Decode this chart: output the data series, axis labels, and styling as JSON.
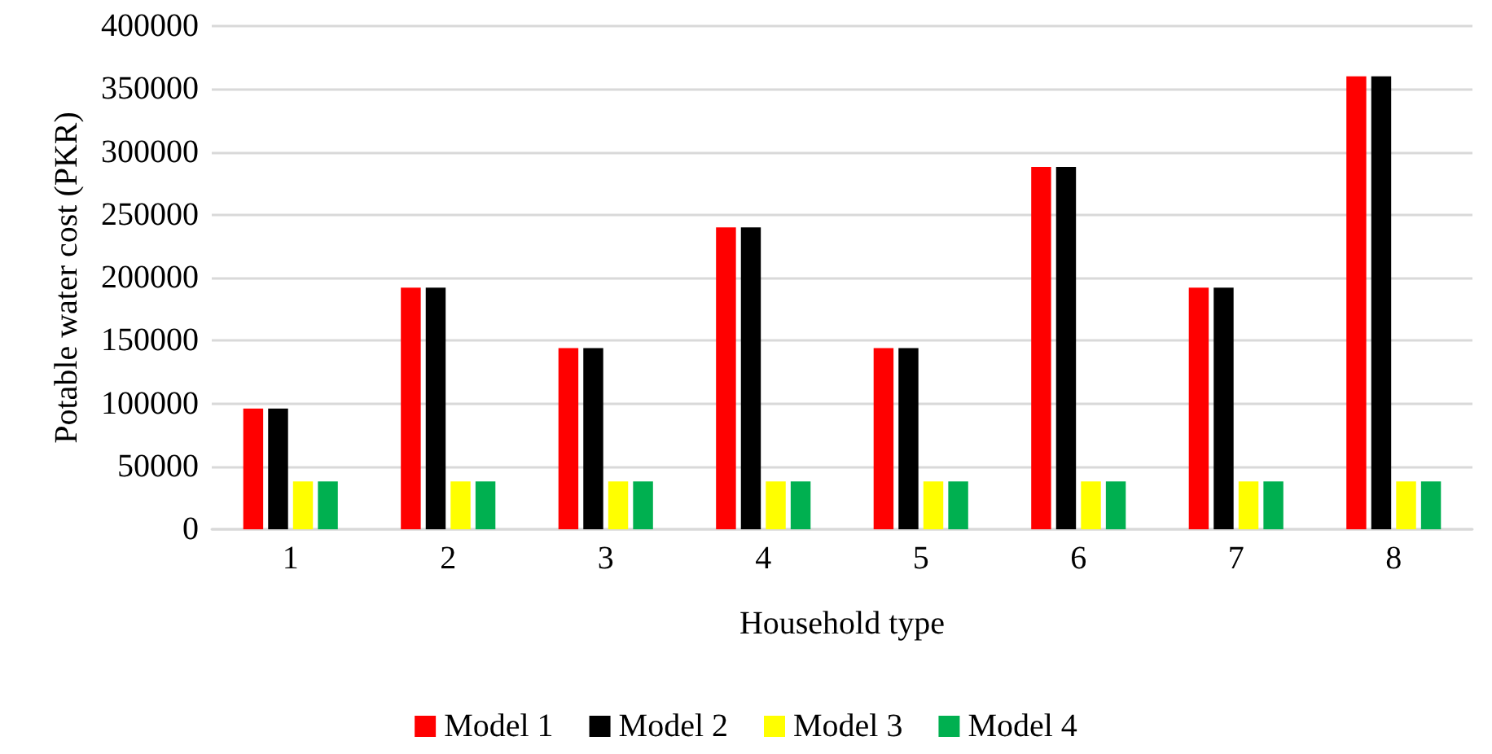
{
  "chart_data": {
    "type": "bar",
    "xlabel": "Household type",
    "ylabel": "Potable water cost (PKR)",
    "categories": [
      "1",
      "2",
      "3",
      "4",
      "5",
      "6",
      "7",
      "8"
    ],
    "series": [
      {
        "name": "Model 1",
        "color": "#ff0000",
        "values": [
          96000,
          192000,
          144000,
          240000,
          144000,
          288000,
          192000,
          360000
        ]
      },
      {
        "name": "Model 2",
        "color": "#000000",
        "values": [
          96000,
          192000,
          144000,
          240000,
          144000,
          288000,
          192000,
          360000
        ]
      },
      {
        "name": "Model 3",
        "color": "#ffff00",
        "values": [
          38000,
          38000,
          38000,
          38000,
          38000,
          38000,
          38000,
          38000
        ]
      },
      {
        "name": "Model 4",
        "color": "#00b050",
        "values": [
          38000,
          38000,
          38000,
          38000,
          38000,
          38000,
          38000,
          38000
        ]
      }
    ],
    "ylim": [
      0,
      400000
    ],
    "yticks": [
      0,
      50000,
      100000,
      150000,
      200000,
      250000,
      300000,
      350000,
      400000
    ],
    "grid": "y",
    "legend": "bottom"
  }
}
